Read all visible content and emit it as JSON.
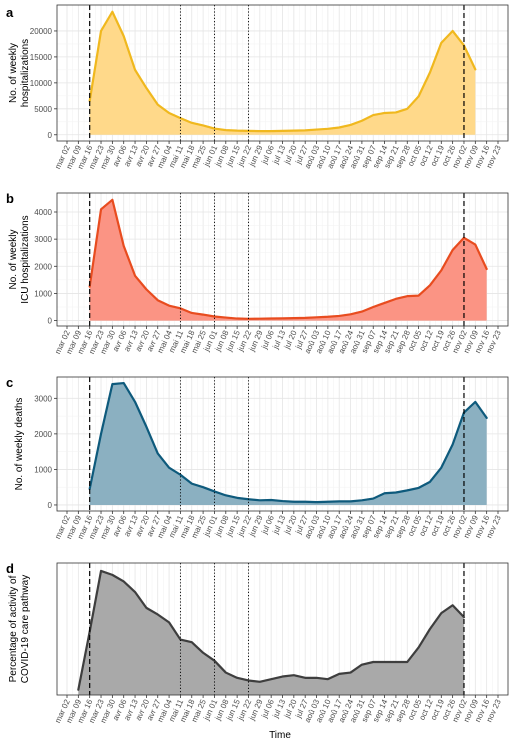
{
  "colors": {
    "grid_major": "#e5e5e5",
    "grid_minor": "#f2f2f2",
    "panel_border": "#333333",
    "vline": "#000000"
  },
  "x_tick_labels": [
    "mar 02",
    "mar 09",
    "mar 16",
    "mar 23",
    "mar 30",
    "avr 06",
    "avr 13",
    "avr 20",
    "avr 27",
    "mai 04",
    "mai 11",
    "mai 18",
    "mai 25",
    "jun 01",
    "jun 08",
    "jun 15",
    "jun 22",
    "jun 29",
    "jul 06",
    "jul 13",
    "jul 20",
    "jul 27",
    "aoû 03",
    "aoû 10",
    "aoû 17",
    "aoû 24",
    "aoû 31",
    "sep 07",
    "sep 14",
    "sep 21",
    "sep 28",
    "oct 05",
    "oct 12",
    "oct 19",
    "oct 26",
    "nov 02",
    "nov 09",
    "nov 16",
    "nov 23"
  ],
  "x_axis_title": "Time",
  "chart_data": [
    {
      "type": "area",
      "panel_label": "a",
      "ylabel": "No. of weekly\nhospitalizations",
      "ylim": [
        -1200,
        25000
      ],
      "y_ticks": [
        0,
        5000,
        10000,
        15000,
        20000
      ],
      "line_color": "#f0b81e",
      "fill_color": "#ffd98a",
      "x_start_index": 2,
      "values": [
        6500,
        20000,
        23700,
        19000,
        12500,
        9000,
        5800,
        4200,
        3200,
        2300,
        1800,
        1200,
        900,
        800,
        750,
        700,
        700,
        750,
        800,
        850,
        1000,
        1150,
        1400,
        1900,
        2700,
        3800,
        4200,
        4300,
        5000,
        7400,
        12000,
        17700,
        20000,
        17200,
        12600
      ],
      "dashed_vlines": [
        "mar 16",
        "nov 02"
      ],
      "dotted_vlines": [
        "mai 11",
        "jun 01",
        "jun 22"
      ]
    },
    {
      "type": "area",
      "panel_label": "b",
      "ylabel": "No. of weekly\nICU hospitalizations",
      "ylim": [
        -200,
        4700
      ],
      "y_ticks": [
        0,
        1000,
        2000,
        3000,
        4000
      ],
      "line_color": "#e84c1f",
      "fill_color": "#fb9484",
      "x_start_index": 2,
      "values": [
        1250,
        4100,
        4450,
        2750,
        1650,
        1150,
        750,
        550,
        450,
        280,
        220,
        150,
        110,
        75,
        65,
        70,
        75,
        80,
        90,
        100,
        120,
        140,
        170,
        230,
        330,
        500,
        650,
        800,
        900,
        920,
        1300,
        1850,
        2600,
        3050,
        2800,
        1900
      ],
      "dashed_vlines": [
        "mar 16",
        "nov 02"
      ],
      "dotted_vlines": [
        "mai 11",
        "jun 01",
        "jun 22"
      ]
    },
    {
      "type": "area",
      "panel_label": "c",
      "ylabel": "No. of weekly deaths",
      "ylim": [
        -170,
        3600
      ],
      "y_ticks": [
        0,
        1000,
        2000,
        3000
      ],
      "line_color": "#0e5a7c",
      "fill_color": "#8bb0c1",
      "x_start_index": 2,
      "values": [
        450,
        2000,
        3400,
        3430,
        2900,
        2200,
        1450,
        1050,
        850,
        600,
        500,
        380,
        270,
        200,
        160,
        130,
        140,
        110,
        90,
        90,
        80,
        90,
        100,
        100,
        130,
        180,
        330,
        350,
        410,
        480,
        650,
        1050,
        1700,
        2600,
        2900,
        2450
      ],
      "dashed_vlines": [
        "mar 16",
        "nov 02"
      ],
      "dotted_vlines": [
        "mai 11",
        "jun 01",
        "jun 22"
      ]
    },
    {
      "type": "area",
      "panel_label": "d",
      "ylabel": "Percentage of activity of\nCOVID-19 care pathway",
      "ylim": [
        0,
        50
      ],
      "y_ticks": [],
      "line_color": "#3e3e3e",
      "fill_color": "#a9a9a9",
      "x_start_index": 1,
      "values": [
        2,
        24,
        47,
        45.5,
        43,
        39,
        33,
        30.5,
        27.5,
        21,
        20,
        16,
        13,
        8.5,
        6.5,
        5.5,
        5,
        6,
        7,
        7.5,
        6.5,
        6.5,
        6,
        8,
        8.5,
        11.5,
        12.5,
        12.5,
        12.5,
        12.5,
        18,
        25,
        31,
        34,
        29.5
      ],
      "dashed_vlines": [
        "mar 16",
        "nov 02"
      ],
      "dotted_vlines": [
        "mai 11",
        "jun 01",
        "jun 22"
      ]
    }
  ]
}
